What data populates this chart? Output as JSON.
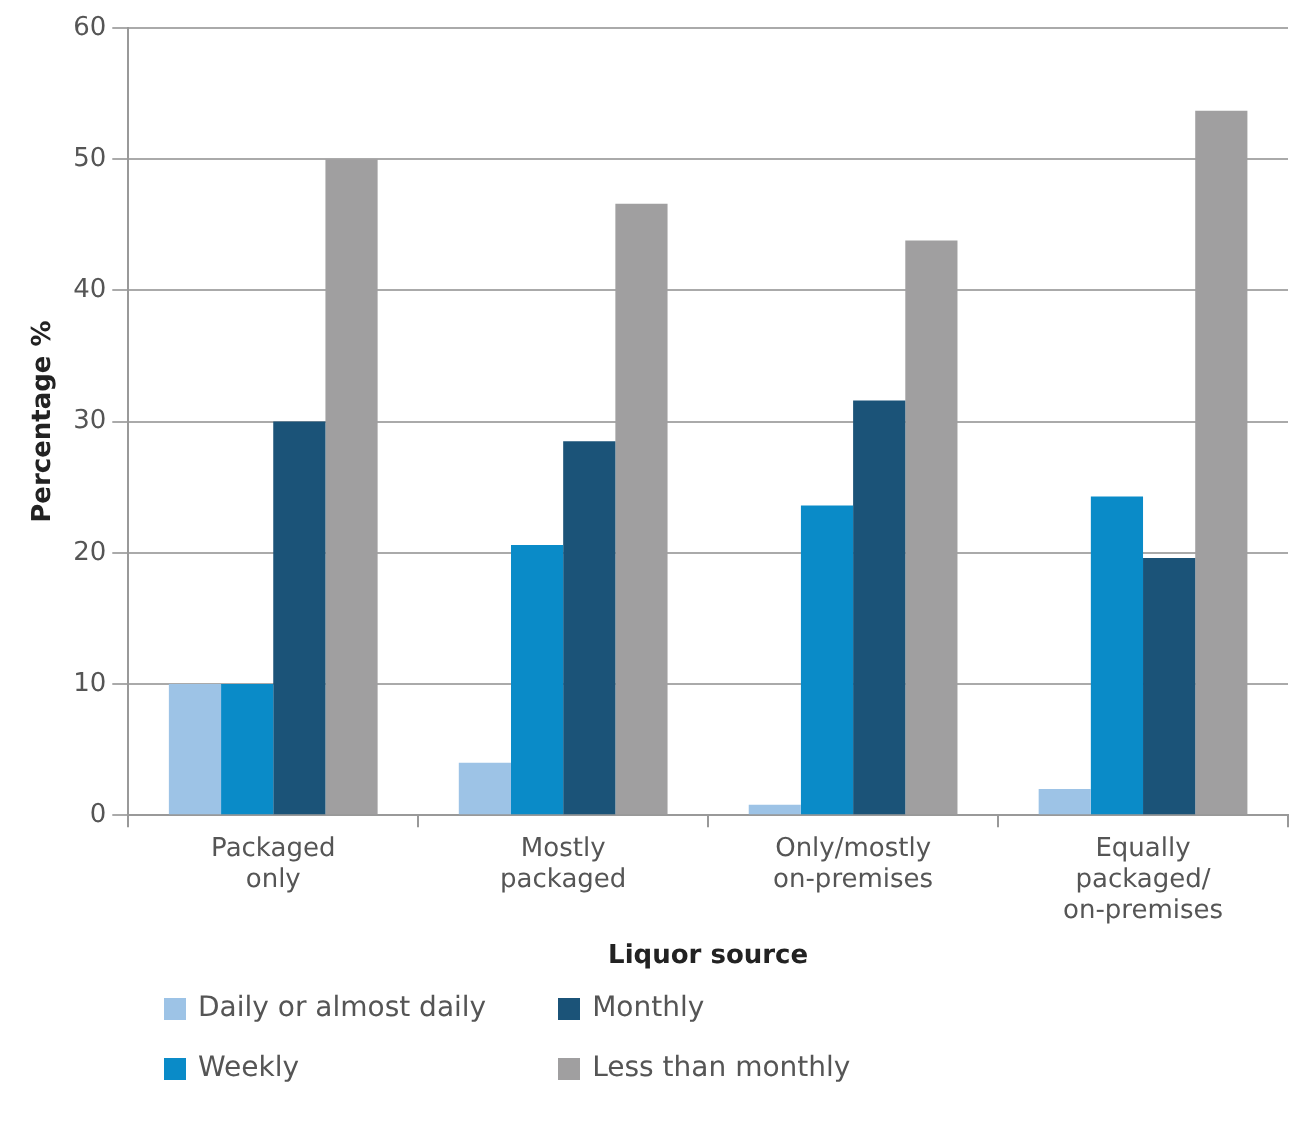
{
  "chart_data": {
    "type": "bar",
    "xlabel": "Liquor source",
    "ylabel": "Percentage %",
    "categories": [
      "Packaged\nonly",
      "Mostly\npackaged",
      "Only/mostly\non-premises",
      "Equally\npackaged/\non-premises"
    ],
    "series": [
      {
        "name": "Daily or almost daily",
        "color": "#9dc3e6",
        "values": [
          10,
          4,
          0.8,
          2
        ]
      },
      {
        "name": "Weekly",
        "color": "#0a8bc8",
        "values": [
          10,
          20.6,
          23.6,
          24.3
        ]
      },
      {
        "name": "Monthly",
        "color": "#1b5378",
        "values": [
          30,
          28.5,
          31.6,
          19.6
        ]
      },
      {
        "name": "Less than monthly",
        "color": "#a09fa0",
        "values": [
          50,
          46.6,
          43.8,
          53.7
        ]
      }
    ],
    "ylim": [
      0,
      60
    ],
    "yticks": [
      0,
      10,
      20,
      30,
      40,
      50,
      60
    ],
    "grid": "y",
    "legend": "bottom left"
  }
}
